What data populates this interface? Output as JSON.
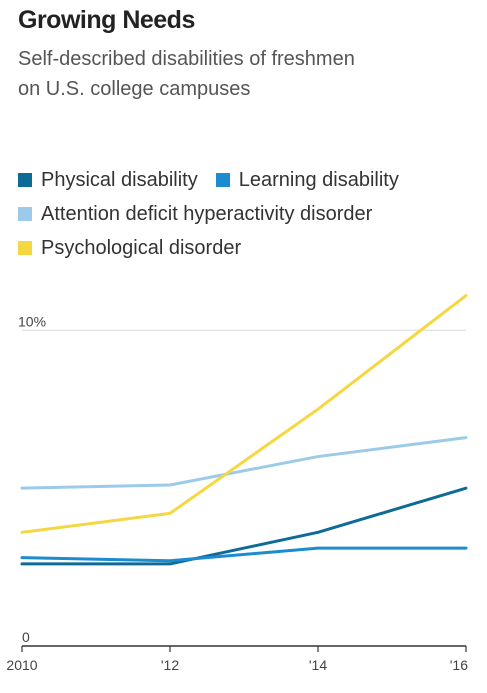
{
  "header": {
    "title": "Growing Needs",
    "subtitle_line1": "Self-described disabilities of freshmen",
    "subtitle_line2": "on U.S. college campuses"
  },
  "chart_data": {
    "type": "line",
    "title": "Growing Needs",
    "subtitle": "Self-described disabilities of freshmen on U.S. college campuses",
    "x": [
      2010,
      2012,
      2014,
      2016
    ],
    "x_tick_labels": [
      "2010",
      "'12",
      "'14",
      "'16"
    ],
    "y_tick_labels": [
      "0",
      "10%"
    ],
    "ylim": [
      0,
      10.8
    ],
    "xlabel": "",
    "ylabel": "",
    "grid": "horizontal",
    "legend_position": "top",
    "series": [
      {
        "name": "Physical disability",
        "color": "#0e6b96",
        "values": [
          2.6,
          2.6,
          3.6,
          5.0
        ]
      },
      {
        "name": "Learning disability",
        "color": "#1a8ccf",
        "values": [
          2.8,
          2.7,
          3.1,
          3.1
        ]
      },
      {
        "name": "Attention deficit hyperactivity disorder",
        "color": "#9ccae8",
        "values": [
          5.0,
          5.1,
          6.0,
          6.6
        ]
      },
      {
        "name": "Psychological disorder",
        "color": "#f5d742",
        "values": [
          3.6,
          4.2,
          7.5,
          11.1
        ]
      }
    ]
  }
}
